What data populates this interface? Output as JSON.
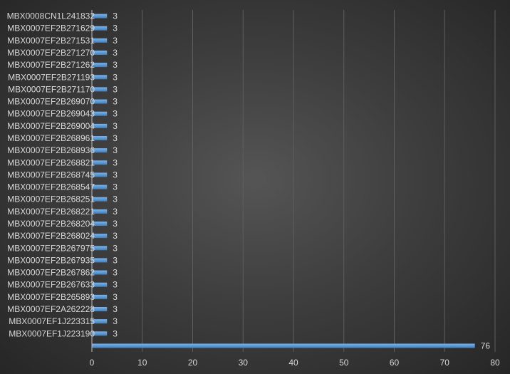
{
  "chart_data": {
    "type": "bar",
    "orientation": "horizontal",
    "categories": [
      "MBX0008CN1L241832",
      "MBX0007EF2B271629",
      "MBX0007EF2B271531",
      "MBX0007EF2B271270",
      "MBX0007EF2B271262",
      "MBX0007EF2B271193",
      "MBX0007EF2B271170",
      "MBX0007EF2B269070",
      "MBX0007EF2B269043",
      "MBX0007EF2B269004",
      "MBX0007EF2B268961",
      "MBX0007EF2B268936",
      "MBX0007EF2B268821",
      "MBX0007EF2B268745",
      "MBX0007EF2B268547",
      "MBX0007EF2B268251",
      "MBX0007EF2B268221",
      "MBX0007EF2B268204",
      "MBX0007EF2B268024",
      "MBX0007EF2B267975",
      "MBX0007EF2B267935",
      "MBX0007EF2B267862",
      "MBX0007EF2B267633",
      "MBX0007EF2B265893",
      "MBX0007EF2A262228",
      "MBX0007EF1J223315",
      "MBX0007EF1J223190",
      ""
    ],
    "values": [
      3,
      3,
      3,
      3,
      3,
      3,
      3,
      3,
      3,
      3,
      3,
      3,
      3,
      3,
      3,
      3,
      3,
      3,
      3,
      3,
      3,
      3,
      3,
      3,
      3,
      3,
      3,
      76
    ],
    "xlim": [
      0,
      80
    ],
    "xticks": [
      0,
      10,
      20,
      30,
      40,
      50,
      60,
      70,
      80
    ],
    "grid": true,
    "data_labels": true,
    "bar_color": "#5b9bd5",
    "text_color": "#d9d9d9"
  }
}
